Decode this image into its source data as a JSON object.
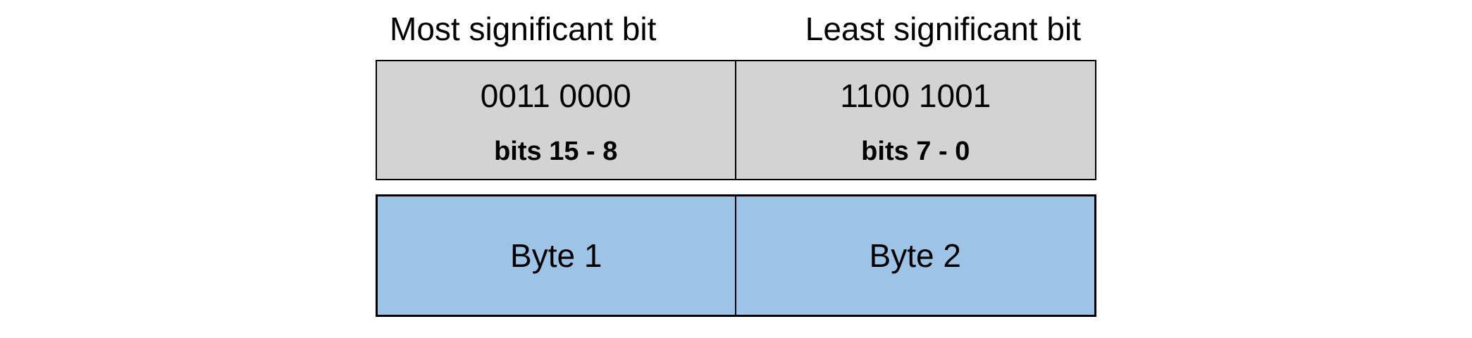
{
  "diagram": {
    "title_semantics": "16-bit word split into two bytes",
    "top_labels": {
      "msb": "Most significant bit",
      "lsb": "Least significant bit"
    },
    "bit_row": {
      "cells": [
        {
          "binary": "0011 0000",
          "bit_range": "bits 15 - 8"
        },
        {
          "binary": "1100 1001",
          "bit_range": "bits 7 - 0"
        }
      ]
    },
    "byte_row": {
      "cells": [
        {
          "label": "Byte 1"
        },
        {
          "label": "Byte 2"
        }
      ]
    },
    "colors": {
      "background": "#ffffff",
      "bit_row_fill": "#d3d3d3",
      "byte_row_fill": "#9dc3e6",
      "border": "#000000",
      "text": "#000000"
    }
  }
}
